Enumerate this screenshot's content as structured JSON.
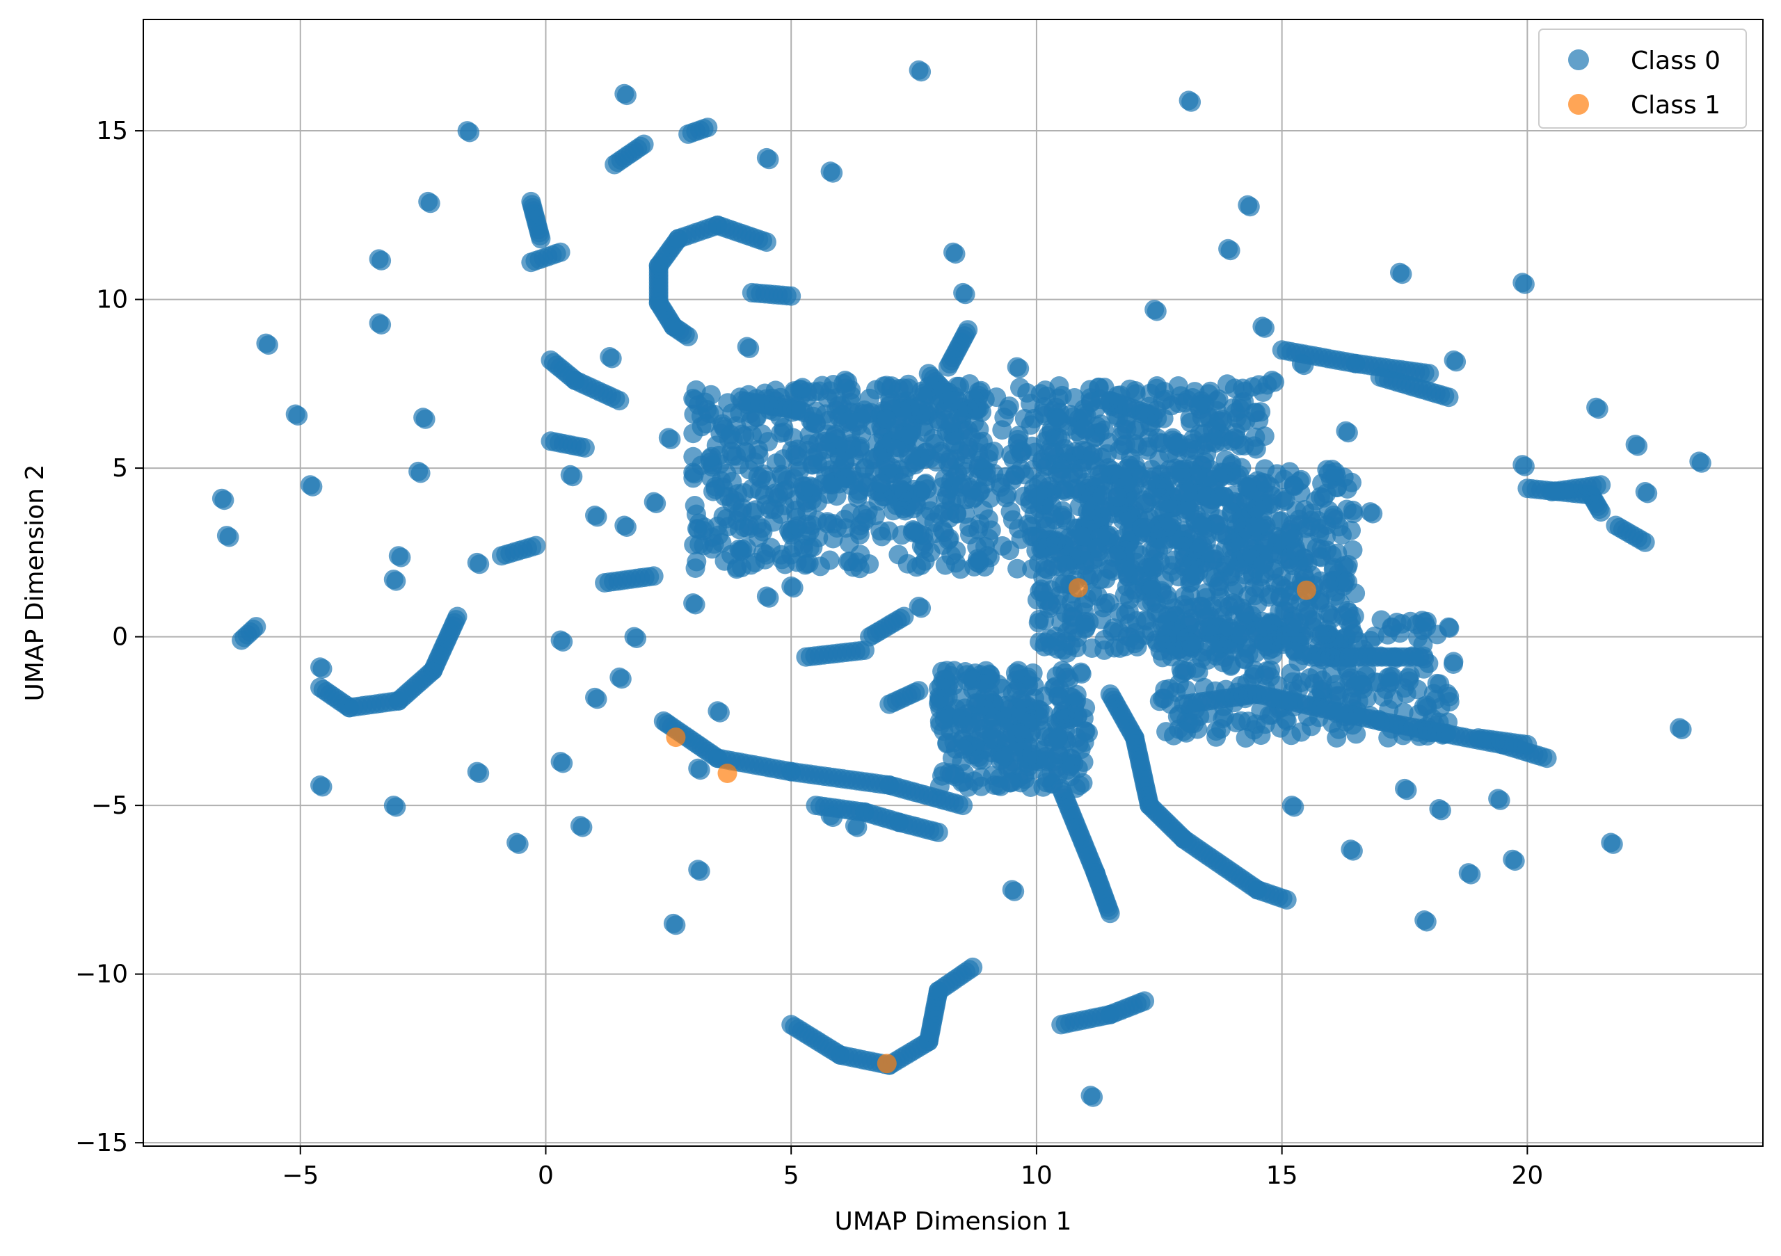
{
  "chart_data": {
    "type": "scatter",
    "xlabel": "UMAP Dimension 1",
    "ylabel": "UMAP Dimension 2",
    "xlim": [
      -8.2,
      24.8
    ],
    "ylim": [
      -15.1,
      18.3
    ],
    "xticks": [
      -5,
      0,
      5,
      10,
      15,
      20
    ],
    "yticks": [
      -15,
      -10,
      -5,
      0,
      5,
      10,
      15
    ],
    "xtick_labels": [
      "−5",
      "0",
      "5",
      "10",
      "15",
      "20"
    ],
    "ytick_labels": [
      "−15",
      "−10",
      "−5",
      "0",
      "5",
      "10",
      "15"
    ],
    "grid": true,
    "legend_position": "top-right",
    "series": [
      {
        "name": "Class 0",
        "color": "#1f77b4",
        "blobs": [
          {
            "x": [
              3.0,
              14.7
            ],
            "y": [
              2.0,
              7.5
            ],
            "n": 900
          },
          {
            "x": [
              10.0,
              16.5
            ],
            "y": [
              -0.5,
              5.0
            ],
            "n": 700
          },
          {
            "x": [
              12.5,
              18.5
            ],
            "y": [
              -3.0,
              0.5
            ],
            "n": 300
          },
          {
            "x": [
              8.0,
              11.0
            ],
            "y": [
              -4.5,
              -1.0
            ],
            "n": 300
          },
          {
            "x": [
              5.0,
              9.0
            ],
            "y": [
              4.0,
              7.5
            ],
            "n": 200
          }
        ],
        "curves": [
          {
            "pts": [
              [
                -4.6,
                -1.5
              ],
              [
                -4.0,
                -2.1
              ],
              [
                -3.0,
                -1.9
              ],
              [
                -2.3,
                -1.0
              ],
              [
                -1.8,
                0.6
              ]
            ]
          },
          {
            "pts": [
              [
                5.0,
                -11.5
              ],
              [
                6.0,
                -12.4
              ],
              [
                7.0,
                -12.7
              ],
              [
                7.8,
                -12.0
              ],
              [
                8.0,
                -10.5
              ],
              [
                8.7,
                -9.8
              ]
            ]
          },
          {
            "pts": [
              [
                10.5,
                -11.5
              ],
              [
                11.5,
                -11.2
              ],
              [
                12.2,
                -10.8
              ]
            ]
          },
          {
            "pts": [
              [
                2.3,
                9.9
              ],
              [
                2.3,
                11.0
              ],
              [
                2.7,
                11.8
              ],
              [
                3.5,
                12.2
              ],
              [
                4.5,
                11.7
              ]
            ]
          },
          {
            "pts": [
              [
                2.3,
                9.9
              ],
              [
                2.6,
                9.2
              ],
              [
                2.9,
                8.9
              ]
            ]
          },
          {
            "pts": [
              [
                11.5,
                -1.7
              ],
              [
                12.0,
                -3.0
              ],
              [
                12.3,
                -5.0
              ],
              [
                13.0,
                -6.0
              ],
              [
                14.5,
                -7.5
              ],
              [
                15.1,
                -7.8
              ]
            ]
          },
          {
            "pts": [
              [
                13.0,
                -2.0
              ],
              [
                14.5,
                -1.7
              ],
              [
                17.0,
                -2.5
              ],
              [
                19.5,
                -3.2
              ],
              [
                20.4,
                -3.6
              ]
            ]
          },
          {
            "pts": [
              [
                2.5,
                -2.6
              ],
              [
                3.5,
                -3.6
              ],
              [
                5.0,
                -4.0
              ],
              [
                7.0,
                -4.4
              ],
              [
                8.5,
                -5.0
              ]
            ]
          },
          {
            "pts": [
              [
                5.5,
                -5.0
              ],
              [
                6.5,
                -5.2
              ],
              [
                7.2,
                -5.5
              ],
              [
                8.0,
                -5.8
              ]
            ]
          },
          {
            "pts": [
              [
                0.1,
                8.2
              ],
              [
                0.6,
                7.6
              ],
              [
                1.5,
                7.0
              ]
            ]
          },
          {
            "pts": [
              [
                0.1,
                5.8
              ],
              [
                0.8,
                5.6
              ]
            ]
          },
          {
            "pts": [
              [
                15.0,
                8.5
              ],
              [
                16.5,
                8.1
              ],
              [
                18.0,
                7.8
              ]
            ]
          },
          {
            "pts": [
              [
                17.0,
                7.7
              ],
              [
                18.4,
                7.1
              ]
            ]
          },
          {
            "pts": [
              [
                20.0,
                4.4
              ],
              [
                21.3,
                4.2
              ],
              [
                21.5,
                3.7
              ]
            ]
          },
          {
            "pts": [
              [
                20.5,
                4.3
              ],
              [
                21.5,
                4.5
              ]
            ]
          },
          {
            "pts": [
              [
                21.8,
                3.3
              ],
              [
                22.4,
                2.8
              ]
            ]
          },
          {
            "pts": [
              [
                8.2,
                8.0
              ],
              [
                8.6,
                9.1
              ]
            ]
          },
          {
            "pts": [
              [
                10.5,
                -4.5
              ],
              [
                11.2,
                -7.0
              ],
              [
                11.5,
                -8.2
              ]
            ]
          },
          {
            "pts": [
              [
                -6.2,
                -0.1
              ],
              [
                -5.9,
                0.3
              ]
            ]
          },
          {
            "pts": [
              [
                -0.9,
                2.4
              ],
              [
                -0.2,
                2.7
              ]
            ]
          },
          {
            "pts": [
              [
                4.2,
                10.2
              ],
              [
                5.0,
                10.1
              ]
            ]
          },
          {
            "pts": [
              [
                1.2,
                1.6
              ],
              [
                2.2,
                1.8
              ]
            ]
          },
          {
            "pts": [
              [
                4.0,
                7.0
              ],
              [
                5.2,
                6.7
              ]
            ]
          },
          {
            "pts": [
              [
                2.9,
                14.9
              ],
              [
                3.3,
                15.1
              ]
            ]
          },
          {
            "pts": [
              [
                1.4,
                14.0
              ],
              [
                2.0,
                14.6
              ]
            ]
          },
          {
            "pts": [
              [
                -0.3,
                12.9
              ],
              [
                -0.1,
                11.8
              ]
            ]
          },
          {
            "pts": [
              [
                -0.3,
                11.1
              ],
              [
                0.3,
                11.4
              ]
            ]
          },
          {
            "pts": [
              [
                6.6,
                0.0
              ],
              [
                7.3,
                0.6
              ]
            ]
          },
          {
            "pts": [
              [
                5.3,
                -0.6
              ],
              [
                6.5,
                -0.4
              ]
            ]
          },
          {
            "pts": [
              [
                7.0,
                -2.0
              ],
              [
                7.6,
                -1.6
              ]
            ]
          },
          {
            "pts": [
              [
                7.8,
                7.8
              ],
              [
                8.3,
                7.0
              ]
            ]
          },
          {
            "pts": [
              [
                11.5,
                7.0
              ],
              [
                12.3,
                6.6
              ]
            ]
          },
          {
            "pts": [
              [
                15.6,
                -0.6
              ],
              [
                17.8,
                -0.6
              ]
            ]
          },
          {
            "pts": [
              [
                19.0,
                -3.0
              ],
              [
                20.0,
                -3.2
              ]
            ]
          }
        ],
        "points": [
          [
            -6.6,
            4.1
          ],
          [
            -6.5,
            3.0
          ],
          [
            -5.7,
            8.7
          ],
          [
            -5.1,
            6.6
          ],
          [
            -4.8,
            4.5
          ],
          [
            -4.6,
            -4.4
          ],
          [
            -4.6,
            -0.9
          ],
          [
            -3.4,
            11.2
          ],
          [
            -3.4,
            9.3
          ],
          [
            -3.1,
            -5.0
          ],
          [
            -3.1,
            1.7
          ],
          [
            -3.0,
            2.4
          ],
          [
            -2.6,
            4.9
          ],
          [
            -2.4,
            12.9
          ],
          [
            -2.5,
            6.5
          ],
          [
            -1.6,
            15.0
          ],
          [
            -1.4,
            2.2
          ],
          [
            -1.4,
            -4.0
          ],
          [
            -0.6,
            -6.1
          ],
          [
            0.3,
            -0.1
          ],
          [
            0.3,
            -3.7
          ],
          [
            0.5,
            4.8
          ],
          [
            0.7,
            -5.6
          ],
          [
            1.3,
            8.3
          ],
          [
            1.6,
            16.1
          ],
          [
            2.4,
            -2.5
          ],
          [
            2.5,
            5.9
          ],
          [
            2.6,
            -8.5
          ],
          [
            3.1,
            -6.9
          ],
          [
            3.1,
            -3.9
          ],
          [
            4.5,
            14.2
          ],
          [
            4.1,
            8.6
          ],
          [
            4.0,
            6.0
          ],
          [
            5.8,
            13.8
          ],
          [
            5.8,
            -5.3
          ],
          [
            6.1,
            7.6
          ],
          [
            6.3,
            -5.6
          ],
          [
            7.6,
            16.8
          ],
          [
            7.6,
            0.9
          ],
          [
            8.3,
            11.4
          ],
          [
            8.5,
            10.2
          ],
          [
            9.6,
            8.0
          ],
          [
            9.5,
            -7.5
          ],
          [
            9.3,
            -3.5
          ],
          [
            10.4,
            6.5
          ],
          [
            11.0,
            -2.8
          ],
          [
            11.1,
            -13.6
          ],
          [
            12.4,
            9.7
          ],
          [
            13.1,
            15.9
          ],
          [
            13.9,
            11.5
          ],
          [
            14.3,
            12.8
          ],
          [
            14.6,
            9.2
          ],
          [
            14.8,
            7.6
          ],
          [
            15.2,
            -5.0
          ],
          [
            15.4,
            8.1
          ],
          [
            16.3,
            6.1
          ],
          [
            16.4,
            -6.3
          ],
          [
            16.8,
            3.7
          ],
          [
            17.4,
            10.8
          ],
          [
            17.5,
            -4.5
          ],
          [
            17.9,
            -8.4
          ],
          [
            18.2,
            -5.1
          ],
          [
            18.5,
            8.2
          ],
          [
            18.8,
            -7.0
          ],
          [
            19.4,
            -4.8
          ],
          [
            19.7,
            -6.6
          ],
          [
            19.9,
            10.5
          ],
          [
            19.9,
            5.1
          ],
          [
            21.4,
            6.8
          ],
          [
            21.7,
            -6.1
          ],
          [
            22.2,
            5.7
          ],
          [
            22.4,
            4.3
          ],
          [
            23.1,
            -2.7
          ],
          [
            23.5,
            5.2
          ],
          [
            13.0,
            -2.8
          ],
          [
            9.0,
            2.4
          ],
          [
            11.5,
            2.0
          ],
          [
            14.0,
            1.0
          ],
          [
            2.2,
            4.0
          ],
          [
            1.6,
            3.3
          ],
          [
            1.0,
            3.6
          ],
          [
            5.0,
            1.5
          ],
          [
            4.5,
            1.2
          ],
          [
            3.0,
            1.0
          ],
          [
            1.8,
            0.0
          ],
          [
            1.5,
            -1.2
          ],
          [
            1.0,
            -1.8
          ],
          [
            3.5,
            -2.2
          ]
        ]
      },
      {
        "name": "Class 1",
        "color": "#ff7f0e",
        "points": [
          [
            10.85,
            1.45
          ],
          [
            15.5,
            1.38
          ],
          [
            2.65,
            -2.98
          ],
          [
            3.7,
            -4.05
          ],
          [
            6.95,
            -12.65
          ]
        ]
      }
    ]
  },
  "legend": {
    "entries": [
      {
        "label": "Class 0",
        "color": "#1f77b4"
      },
      {
        "label": "Class 1",
        "color": "#ff7f0e"
      }
    ]
  }
}
